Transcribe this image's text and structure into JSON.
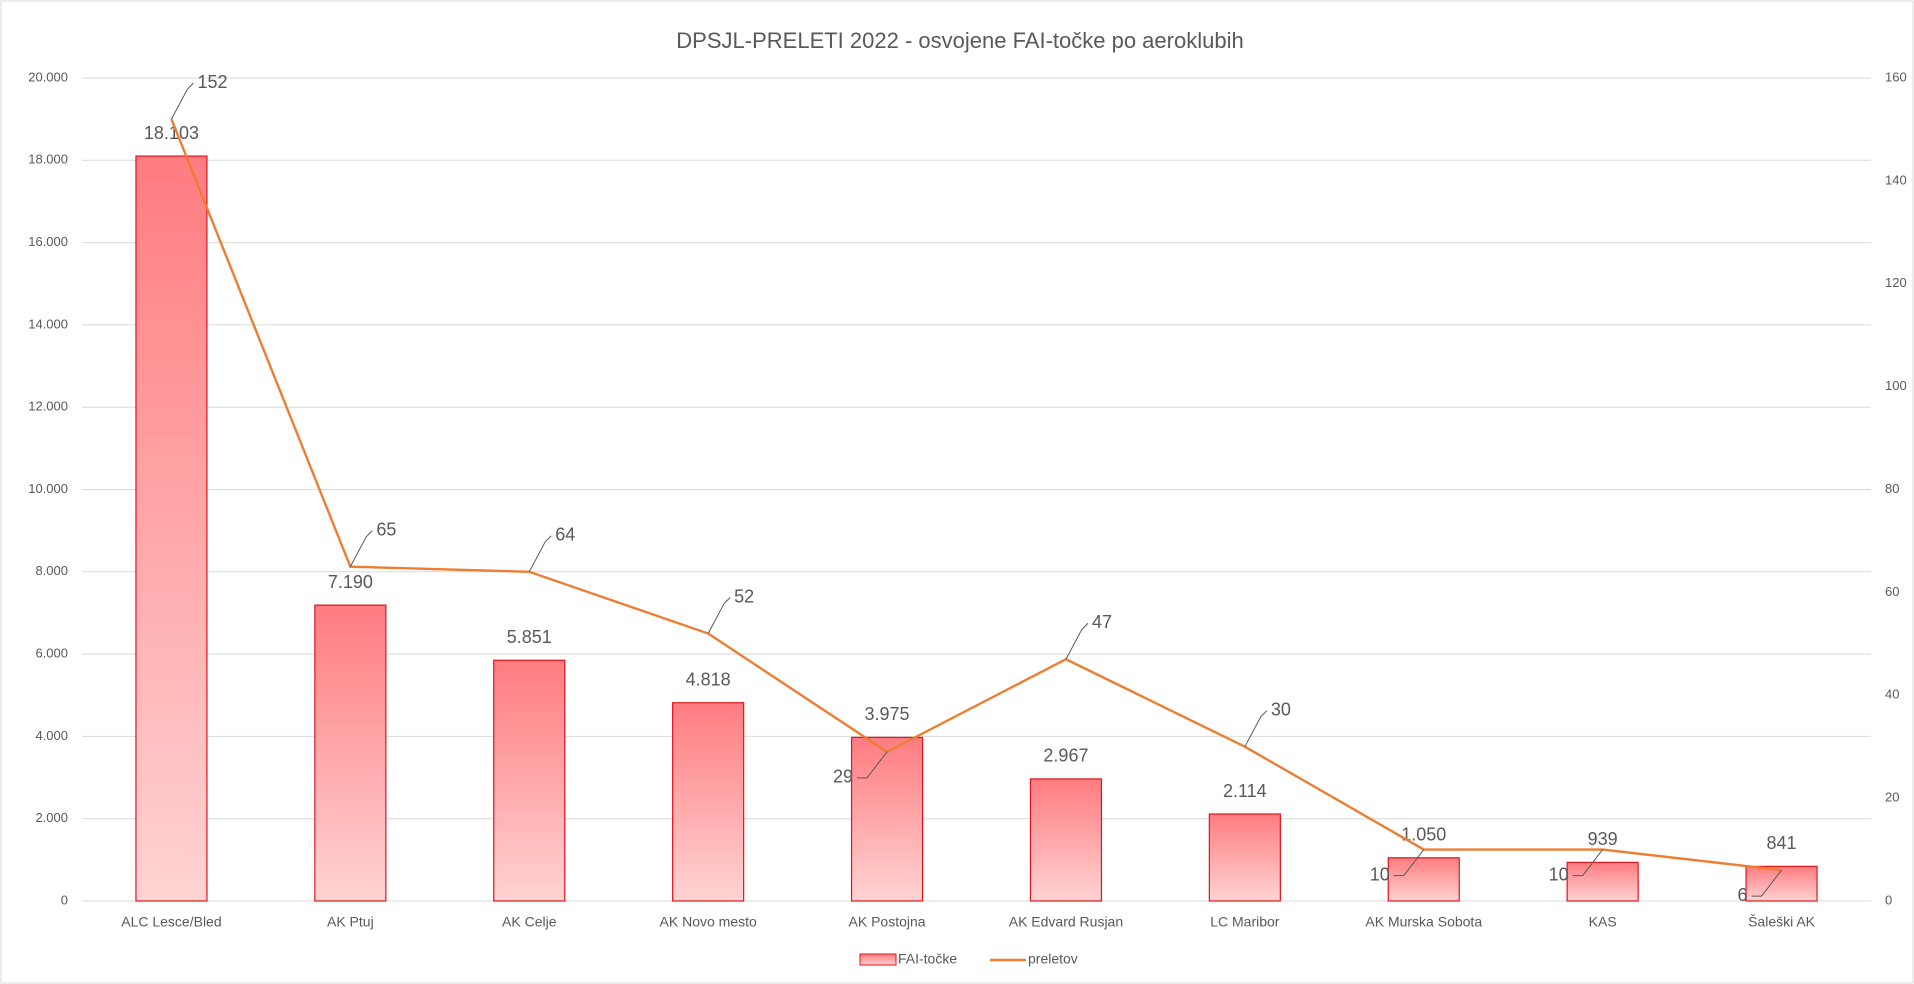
{
  "chart_data": {
    "type": "bar",
    "title": "DPSJL-PRELETI 2022 - osvojene FAI-točke po aeroklubih",
    "categories": [
      "ALC Lesce/Bled",
      "AK Ptuj",
      "AK Celje",
      "AK Novo mesto",
      "AK Postojna",
      "AK Edvard Rusjan",
      "LC Maribor",
      "AK Murska Sobota",
      "KAS",
      "Šaleški AK"
    ],
    "series": [
      {
        "name": "FAI-točke",
        "type": "bar",
        "color": "#ff7c80",
        "values": [
          18103,
          7190,
          5851,
          4818,
          3975,
          2967,
          2114,
          1050,
          939,
          841
        ],
        "value_labels": [
          "18.103",
          "7.190",
          "5.851",
          "4.818",
          "3.975",
          "2.967",
          "2.114",
          "1.050",
          "939",
          "841"
        ]
      },
      {
        "name": "preletov",
        "type": "line",
        "color": "#ed7d31",
        "axis": "y2",
        "values": [
          152,
          65,
          64,
          52,
          29,
          47,
          30,
          10,
          10,
          6
        ]
      }
    ],
    "ylim": [
      0,
      20000
    ],
    "yticks": [
      0,
      {
        "value": 2000,
        "label": "2.000"
      },
      {
        "value": 4000,
        "label": "4.000"
      },
      {
        "value": 6000,
        "label": "6.000"
      },
      {
        "value": 8000,
        "label": "8.000"
      },
      {
        "value": 10000,
        "label": "10.000"
      },
      {
        "value": 12000,
        "label": "12.000"
      },
      {
        "value": 14000,
        "label": "14.000"
      },
      {
        "value": 16000,
        "label": "16.000"
      },
      {
        "value": 18000,
        "label": "18.000"
      },
      {
        "value": 20000,
        "label": "20.000"
      }
    ],
    "y2lim": [
      0,
      160
    ],
    "y2ticks": [
      0,
      20,
      40,
      60,
      80,
      100,
      120,
      140,
      160
    ],
    "grid": true,
    "legend": "bottom"
  }
}
